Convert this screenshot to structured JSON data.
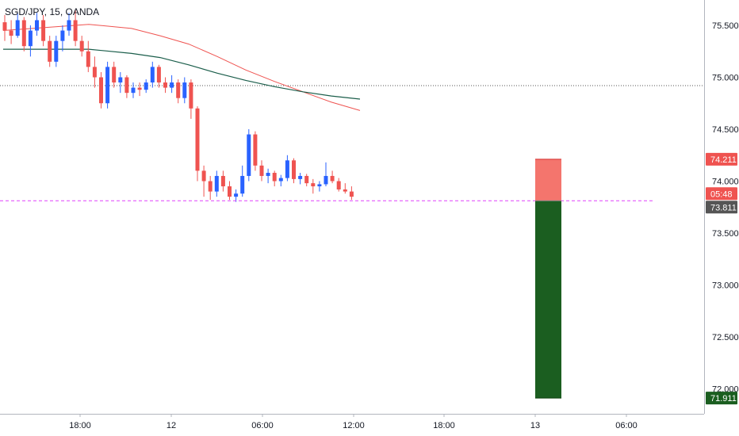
{
  "header": {
    "symbol_label": "SGD/JPY, 15, OANDA"
  },
  "chart_data": {
    "type": "candlestick",
    "title": "SGD/JPY, 15, OANDA",
    "y_ticks": [
      "75.500",
      "75.000",
      "74.500",
      "74.000",
      "73.500",
      "73.000",
      "72.500",
      "72.000"
    ],
    "y_tick_values": [
      75.5,
      75.0,
      74.5,
      74.0,
      73.5,
      73.0,
      72.5,
      72.0
    ],
    "x_ticks": [
      "18:00",
      "12",
      "06:00",
      "12:00",
      "18:00",
      "13",
      "06:00"
    ],
    "ylim": [
      71.5,
      75.8
    ],
    "colors": {
      "up": "#2962ff",
      "down": "#ef5350",
      "ma_fast": "#ef5350",
      "ma_slow": "#1b5e4b",
      "current_line": "#e040fb",
      "stop": "#f4756d",
      "target": "#1b5e20"
    },
    "candles": [
      {
        "o": 75.53,
        "h": 75.6,
        "l": 75.35,
        "c": 75.45
      },
      {
        "o": 75.45,
        "h": 75.55,
        "l": 75.32,
        "c": 75.4
      },
      {
        "o": 75.4,
        "h": 75.62,
        "l": 75.38,
        "c": 75.55
      },
      {
        "o": 75.55,
        "h": 75.58,
        "l": 75.25,
        "c": 75.3
      },
      {
        "o": 75.3,
        "h": 75.5,
        "l": 75.2,
        "c": 75.45
      },
      {
        "o": 75.45,
        "h": 75.62,
        "l": 75.4,
        "c": 75.55
      },
      {
        "o": 75.55,
        "h": 75.6,
        "l": 75.3,
        "c": 75.35
      },
      {
        "o": 75.35,
        "h": 75.4,
        "l": 75.1,
        "c": 75.15
      },
      {
        "o": 75.15,
        "h": 75.4,
        "l": 75.1,
        "c": 75.35
      },
      {
        "o": 75.35,
        "h": 75.5,
        "l": 75.25,
        "c": 75.45
      },
      {
        "o": 75.45,
        "h": 75.62,
        "l": 75.4,
        "c": 75.55
      },
      {
        "o": 75.55,
        "h": 75.65,
        "l": 75.3,
        "c": 75.35
      },
      {
        "o": 75.35,
        "h": 75.4,
        "l": 75.2,
        "c": 75.25
      },
      {
        "o": 75.25,
        "h": 75.35,
        "l": 75.05,
        "c": 75.1
      },
      {
        "o": 75.1,
        "h": 75.2,
        "l": 74.9,
        "c": 75.0
      },
      {
        "o": 75.0,
        "h": 75.05,
        "l": 74.7,
        "c": 74.75
      },
      {
        "o": 74.75,
        "h": 75.15,
        "l": 74.7,
        "c": 75.1
      },
      {
        "o": 75.1,
        "h": 75.15,
        "l": 74.9,
        "c": 74.95
      },
      {
        "o": 74.95,
        "h": 75.05,
        "l": 74.85,
        "c": 75.0
      },
      {
        "o": 75.0,
        "h": 75.02,
        "l": 74.8,
        "c": 74.85
      },
      {
        "o": 74.85,
        "h": 74.95,
        "l": 74.8,
        "c": 74.9
      },
      {
        "o": 74.9,
        "h": 74.95,
        "l": 74.82,
        "c": 74.88
      },
      {
        "o": 74.88,
        "h": 74.98,
        "l": 74.85,
        "c": 74.95
      },
      {
        "o": 74.95,
        "h": 75.15,
        "l": 74.9,
        "c": 75.1
      },
      {
        "o": 75.1,
        "h": 75.12,
        "l": 74.9,
        "c": 74.95
      },
      {
        "o": 74.95,
        "h": 75.0,
        "l": 74.85,
        "c": 74.9
      },
      {
        "o": 74.9,
        "h": 75.02,
        "l": 74.85,
        "c": 74.95
      },
      {
        "o": 74.95,
        "h": 74.98,
        "l": 74.75,
        "c": 74.8
      },
      {
        "o": 74.8,
        "h": 75.0,
        "l": 74.75,
        "c": 74.95
      },
      {
        "o": 74.95,
        "h": 74.98,
        "l": 74.6,
        "c": 74.7
      },
      {
        "o": 74.7,
        "h": 74.72,
        "l": 74.0,
        "c": 74.1
      },
      {
        "o": 74.1,
        "h": 74.15,
        "l": 73.85,
        "c": 74.0
      },
      {
        "o": 74.0,
        "h": 74.05,
        "l": 73.82,
        "c": 73.9
      },
      {
        "o": 73.9,
        "h": 74.1,
        "l": 73.85,
        "c": 74.05
      },
      {
        "o": 74.05,
        "h": 74.1,
        "l": 73.9,
        "c": 73.95
      },
      {
        "o": 73.95,
        "h": 74.0,
        "l": 73.82,
        "c": 73.85
      },
      {
        "o": 73.85,
        "h": 73.92,
        "l": 73.8,
        "c": 73.88
      },
      {
        "o": 73.88,
        "h": 74.15,
        "l": 73.85,
        "c": 74.05
      },
      {
        "o": 74.05,
        "h": 74.5,
        "l": 74.0,
        "c": 74.45
      },
      {
        "o": 74.45,
        "h": 74.48,
        "l": 74.1,
        "c": 74.15
      },
      {
        "o": 74.15,
        "h": 74.2,
        "l": 74.0,
        "c": 74.05
      },
      {
        "o": 74.05,
        "h": 74.12,
        "l": 73.98,
        "c": 74.08
      },
      {
        "o": 74.08,
        "h": 74.1,
        "l": 73.95,
        "c": 74.0
      },
      {
        "o": 74.0,
        "h": 74.06,
        "l": 73.95,
        "c": 74.03
      },
      {
        "o": 74.03,
        "h": 74.25,
        "l": 74.0,
        "c": 74.2
      },
      {
        "o": 74.2,
        "h": 74.22,
        "l": 73.98,
        "c": 74.02
      },
      {
        "o": 74.02,
        "h": 74.08,
        "l": 73.97,
        "c": 74.05
      },
      {
        "o": 74.05,
        "h": 74.07,
        "l": 73.95,
        "c": 73.98
      },
      {
        "o": 73.98,
        "h": 74.02,
        "l": 73.88,
        "c": 73.95
      },
      {
        "o": 73.95,
        "h": 74.0,
        "l": 73.9,
        "c": 73.97
      },
      {
        "o": 73.97,
        "h": 74.18,
        "l": 73.95,
        "c": 74.05
      },
      {
        "o": 74.05,
        "h": 74.1,
        "l": 73.98,
        "c": 74.0
      },
      {
        "o": 74.0,
        "h": 74.03,
        "l": 73.9,
        "c": 73.92
      },
      {
        "o": 73.92,
        "h": 73.98,
        "l": 73.88,
        "c": 73.9
      },
      {
        "o": 73.9,
        "h": 73.95,
        "l": 73.82,
        "c": 73.85
      }
    ],
    "ma_fast": [
      [
        0,
        75.45
      ],
      [
        15,
        75.48
      ],
      [
        30,
        75.51
      ],
      [
        45,
        75.47
      ],
      [
        55,
        75.4
      ],
      [
        65,
        75.32
      ],
      [
        75,
        75.2
      ],
      [
        85,
        75.07
      ],
      [
        95,
        74.96
      ],
      [
        105,
        74.86
      ],
      [
        115,
        74.76
      ],
      [
        125,
        74.68
      ]
    ],
    "ma_slow": [
      [
        0,
        75.27
      ],
      [
        15,
        75.27
      ],
      [
        30,
        75.27
      ],
      [
        45,
        75.23
      ],
      [
        55,
        75.19
      ],
      [
        65,
        75.12
      ],
      [
        75,
        75.04
      ],
      [
        85,
        74.97
      ],
      [
        95,
        74.91
      ],
      [
        105,
        74.86
      ],
      [
        115,
        74.82
      ],
      [
        125,
        74.79
      ]
    ],
    "dotted_level": 74.92,
    "current_price": 73.811,
    "position": {
      "entry": 73.811,
      "stop": 74.211,
      "target": 71.911
    },
    "price_badges": {
      "stop_label": "74.211",
      "timer_label": "05:48",
      "current_label": "73.811",
      "target_label": "71.911"
    }
  }
}
